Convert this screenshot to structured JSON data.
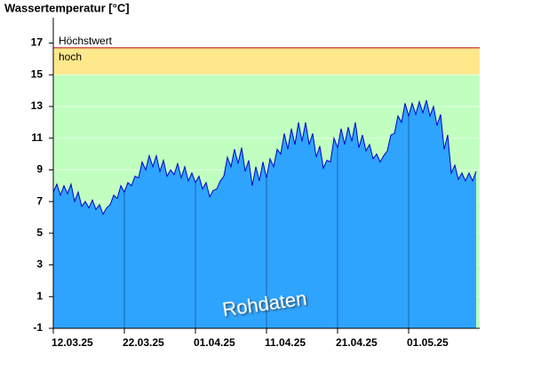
{
  "chart_data": {
    "type": "area",
    "title": "Wassertemperatur [°C]",
    "watermark": "Rohdaten",
    "x": [
      0,
      0.5,
      1,
      1.5,
      2,
      2.5,
      3,
      3.5,
      4,
      4.5,
      5,
      5.5,
      6,
      6.5,
      7,
      7.5,
      8,
      8.5,
      9,
      9.5,
      10,
      10.5,
      11,
      11.5,
      12,
      12.5,
      13,
      13.5,
      14,
      14.5,
      15,
      15.5,
      16,
      16.5,
      17,
      17.5,
      18,
      18.5,
      19,
      19.5,
      20,
      20.5,
      21,
      21.5,
      22,
      22.5,
      23,
      23.5,
      24,
      24.5,
      25,
      25.5,
      26,
      26.5,
      27,
      27.5,
      28,
      28.5,
      29,
      29.5,
      30,
      30.5,
      31,
      31.5,
      32,
      32.5,
      33,
      33.5,
      34,
      34.5,
      35,
      35.5,
      36,
      36.5,
      37,
      37.5,
      38,
      38.5,
      39,
      39.5,
      40,
      40.5,
      41,
      41.5,
      42,
      42.5,
      43,
      43.5,
      44,
      44.5,
      45,
      45.5,
      46,
      46.5,
      47,
      47.5,
      48,
      48.5,
      49,
      49.5,
      50,
      50.5,
      51,
      51.5,
      52,
      52.5,
      53,
      53.5,
      54,
      54.5,
      55,
      55.5,
      56,
      56.5,
      57,
      57.5,
      58,
      58.5,
      59,
      59.5
    ],
    "values": [
      7.6,
      8.1,
      7.4,
      8.0,
      7.5,
      8.1,
      7.0,
      7.6,
      6.7,
      7.0,
      6.6,
      7.1,
      6.5,
      6.8,
      6.2,
      6.6,
      6.8,
      7.4,
      7.2,
      8.0,
      7.6,
      8.2,
      8.0,
      8.6,
      8.5,
      9.5,
      9.0,
      9.9,
      9.2,
      9.9,
      8.9,
      9.6,
      8.6,
      9.0,
      8.7,
      9.4,
      8.5,
      9.2,
      8.3,
      8.8,
      8.2,
      8.6,
      7.8,
      8.2,
      7.3,
      7.7,
      7.8,
      8.3,
      8.6,
      9.8,
      9.2,
      10.3,
      9.4,
      10.4,
      8.9,
      9.6,
      8.0,
      9.2,
      8.3,
      9.5,
      8.5,
      9.7,
      9.2,
      10.3,
      10.0,
      11.3,
      10.3,
      11.6,
      10.6,
      12.0,
      10.8,
      12.0,
      10.6,
      11.3,
      9.8,
      10.5,
      9.1,
      9.6,
      9.5,
      11.0,
      10.4,
      11.6,
      10.6,
      11.7,
      10.8,
      12.0,
      10.4,
      11.2,
      10.2,
      10.6,
      9.7,
      10.0,
      9.5,
      9.9,
      10.2,
      11.2,
      11.3,
      12.4,
      12.0,
      13.2,
      12.4,
      13.2,
      12.5,
      13.3,
      12.6,
      13.4,
      12.4,
      13.0,
      11.8,
      12.5,
      10.3,
      11.2,
      8.8,
      9.3,
      8.4,
      8.8,
      8.3,
      8.8,
      8.3,
      8.9
    ],
    "color": "#2ea4ff",
    "line_color": "#0000c8",
    "background_color": "#c0ffc0",
    "bands": [
      {
        "name": "hoch",
        "from": 15,
        "to": 16.7,
        "color": "#ffe88c"
      }
    ],
    "threshold_lines": [
      {
        "name": "Höchstwert",
        "value": 16.7,
        "color": "#c00000"
      }
    ],
    "xlim": [
      0,
      60
    ],
    "xticks": [
      {
        "value": 0,
        "label": "12.03.25"
      },
      {
        "value": 10,
        "label": "22.03.25"
      },
      {
        "value": 20,
        "label": "01.04.25"
      },
      {
        "value": 30,
        "label": "11.04.25"
      },
      {
        "value": 40,
        "label": "21.04.25"
      },
      {
        "value": 50,
        "label": "01.05.25"
      }
    ],
    "ylim": [
      -1,
      18.6
    ],
    "yticks": [
      -1,
      1,
      3,
      5,
      7,
      9,
      11,
      13,
      15,
      17
    ],
    "grid": true
  }
}
